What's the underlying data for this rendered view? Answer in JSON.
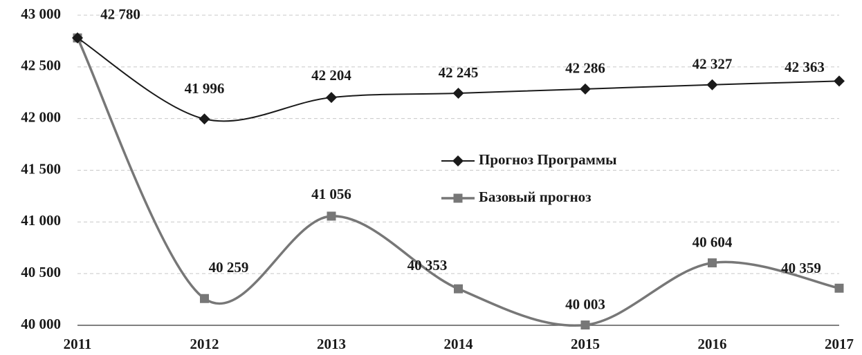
{
  "chart_data": {
    "type": "line",
    "categories": [
      "2011",
      "2012",
      "2013",
      "2014",
      "2015",
      "2016",
      "2017"
    ],
    "series": [
      {
        "name": "Прогноз Программы",
        "color": "#1a1a1a",
        "marker": "diamond",
        "values": [
          42780,
          41996,
          42204,
          42245,
          42286,
          42327,
          42363
        ],
        "value_labels": [
          "42 780",
          "41 996",
          "42 204",
          "42 245",
          "42 286",
          "42 327",
          "42 363"
        ]
      },
      {
        "name": "Базовый прогноз",
        "color": "#777777",
        "marker": "square",
        "values": [
          42780,
          40259,
          41056,
          40353,
          40003,
          40604,
          40359
        ],
        "value_labels": [
          null,
          "40 259",
          "41 056",
          "40 353",
          "40 003",
          "40 604",
          "40 359"
        ]
      }
    ],
    "ylim": [
      40000,
      43000
    ],
    "yticks": [
      {
        "value": 40000,
        "label": "40 000"
      },
      {
        "value": 40500,
        "label": "40 500"
      },
      {
        "value": 41000,
        "label": "41 000"
      },
      {
        "value": 41500,
        "label": "41 500"
      },
      {
        "value": 42000,
        "label": "42 000"
      },
      {
        "value": 42500,
        "label": "42 500"
      },
      {
        "value": 43000,
        "label": "43 000"
      }
    ],
    "grid": true,
    "smooth": true,
    "legend": "center"
  }
}
